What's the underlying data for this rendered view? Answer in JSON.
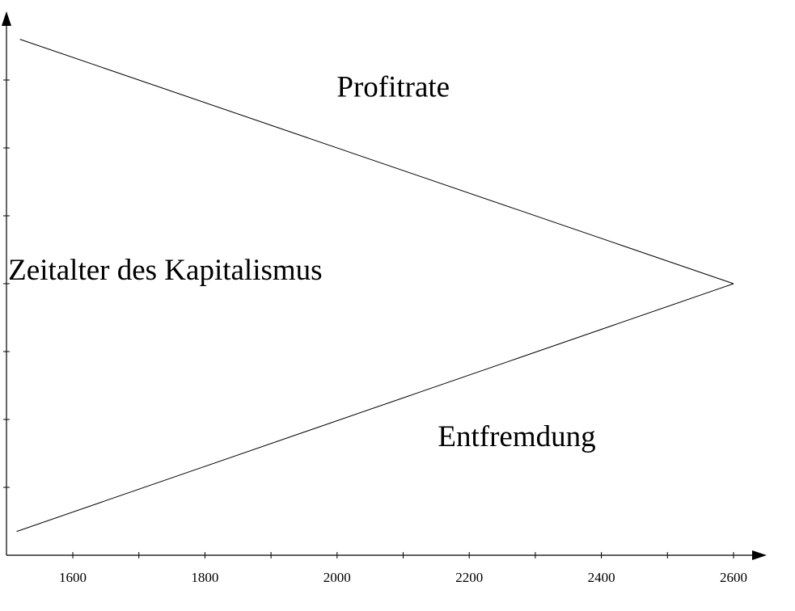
{
  "chart_data": {
    "type": "line",
    "xlabel": "",
    "ylabel": "",
    "xlim": [
      1500,
      2650
    ],
    "ylim": [
      0,
      8
    ],
    "x_ticks": [
      1600,
      1800,
      2000,
      2200,
      2400,
      2600
    ],
    "x_minor_ticks": [
      1700,
      1900,
      2100,
      2300,
      2500
    ],
    "y_ticks": [
      1,
      2,
      3,
      4,
      5,
      6,
      7
    ],
    "y_tick_labels_shown": false,
    "grid": false,
    "series": [
      {
        "values": [
          [
            1520,
            7.6
          ],
          [
            2600,
            4.0
          ]
        ]
      },
      {
        "values": [
          [
            1515,
            0.35
          ],
          [
            2600,
            4.0
          ]
        ]
      }
    ],
    "annotations": [
      {
        "text": "Profitrate",
        "x": 2085,
        "y": 6.9
      },
      {
        "text": "Zeitalter des Kapitalismus",
        "x": 1740,
        "y": 4.2
      },
      {
        "text": "Entfremdung",
        "x": 2272,
        "y": 1.75
      }
    ],
    "tick_labels": [
      "1600",
      "1800",
      "2000",
      "2200",
      "2400",
      "2600"
    ]
  }
}
